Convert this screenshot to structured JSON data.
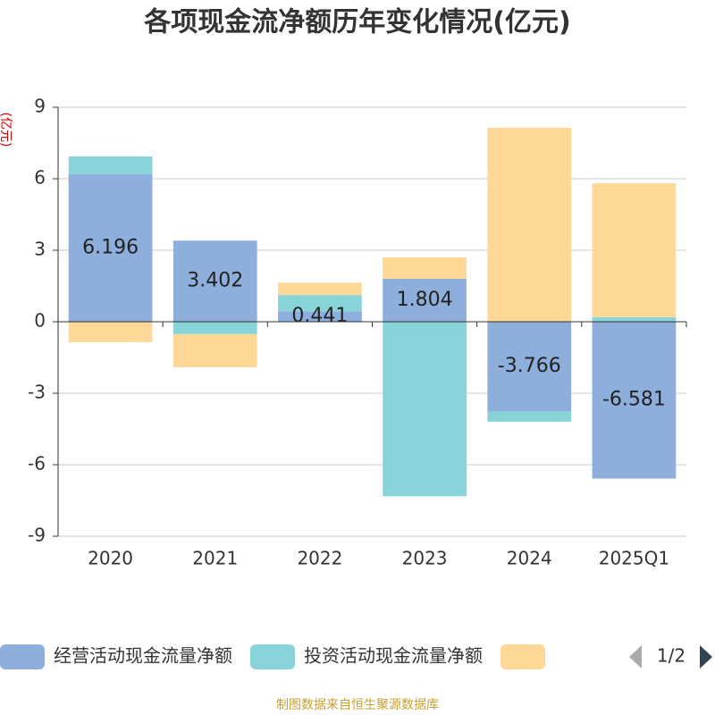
{
  "chart_data": {
    "type": "bar",
    "stacked": true,
    "title": "各项现金流净额历年变化情况(亿元)",
    "y_label": "(亿元)",
    "categories": [
      "2020",
      "2021",
      "2022",
      "2023",
      "2024",
      "2025Q1"
    ],
    "series": [
      {
        "name": "经营活动现金流量净额",
        "color": "#8eaedb",
        "values": [
          6.196,
          3.402,
          0.441,
          1.804,
          -3.766,
          -6.581
        ],
        "show_labels": true
      },
      {
        "name": "投资活动现金流量净额",
        "color": "#88d4d8",
        "values": [
          0.74,
          -0.52,
          0.68,
          -7.32,
          -0.43,
          0.19
        ]
      },
      {
        "name": null,
        "color": "#fed897",
        "values": [
          -0.86,
          -1.39,
          0.52,
          0.9,
          8.14,
          5.62
        ]
      }
    ],
    "ylim": [
      -9,
      9
    ],
    "yticks": [
      -9,
      -6,
      -3,
      0,
      3,
      6,
      9
    ],
    "grid": true,
    "legend_page": "1/2",
    "source": "制图数据来自恒生聚源数据库"
  }
}
